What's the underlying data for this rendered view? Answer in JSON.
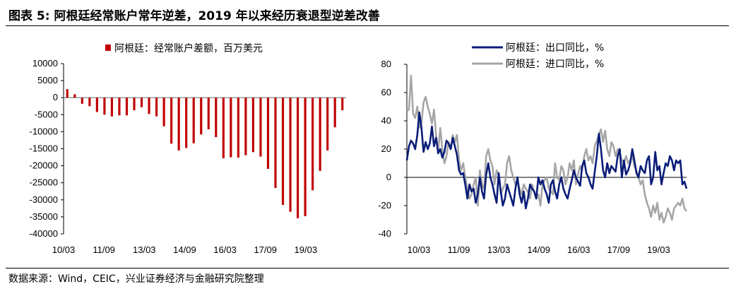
{
  "figure": {
    "title": "图表 5:  阿根廷经常账户常年逆差，2019 年以来经历衰退型逆差改善",
    "source": "数据来源：Wind，CEIC，兴业证券经济与金融研究院整理"
  },
  "chart_data": [
    {
      "type": "bar",
      "series": [
        {
          "name": "阿根廷：经常账户差额，百万美元",
          "color": "#c00000",
          "values": [
            2500,
            1000,
            -1800,
            -2500,
            -4200,
            -5000,
            -5500,
            -5200,
            -5200,
            -3700,
            -2800,
            -4800,
            -5500,
            -8400,
            -13500,
            -15500,
            -14800,
            -13400,
            -10800,
            -9300,
            -11600,
            -17800,
            -17500,
            -17600,
            -16900,
            -16000,
            -17300,
            -20900,
            -26500,
            -31500,
            -33500,
            -35400,
            -34800,
            -27200,
            -21500,
            -15500,
            -8700,
            -3700
          ]
        }
      ],
      "ylim": [
        -40000,
        10000
      ],
      "yticks": [
        "10000",
        "5000",
        "0",
        "-5000",
        "-10000",
        "-15000",
        "-20000",
        "-25000",
        "-30000",
        "-35000",
        "-40000"
      ],
      "xtick_labels": [
        "10/03",
        "11/09",
        "13/03",
        "14/09",
        "16/03",
        "17/09",
        "19/03"
      ],
      "legend_position": "top"
    },
    {
      "type": "line",
      "series": [
        {
          "name": "阿根廷：出口同比，%",
          "color": "#0a1c78",
          "values": [
            12,
            22,
            26,
            24,
            20,
            30,
            46,
            35,
            18,
            25,
            20,
            24,
            36,
            22,
            28,
            17,
            20,
            14,
            18,
            26,
            24,
            20,
            28,
            22,
            16,
            5,
            2,
            3,
            -5,
            -15,
            -5,
            -10,
            -8,
            -18,
            -12,
            0,
            -10,
            -15,
            2,
            10,
            0,
            -5,
            -12,
            -18,
            3,
            -10,
            -20,
            -15,
            -5,
            -10,
            -15,
            -20,
            -8,
            0,
            -12,
            -18,
            -10,
            -22,
            -15,
            -5,
            -8,
            -10,
            -15,
            0,
            -5,
            -2,
            -8,
            -12,
            -18,
            -5,
            -2,
            -10,
            -15,
            -5,
            0,
            -8,
            -12,
            -15,
            -8,
            -2,
            5,
            0,
            -3,
            -6,
            8,
            12,
            3,
            0,
            -5,
            -8,
            4,
            15,
            31,
            20,
            5,
            0,
            10,
            3,
            8,
            6,
            4,
            15,
            20,
            0,
            12,
            2,
            5,
            10,
            20,
            12,
            3,
            0,
            8,
            5,
            3,
            12,
            15,
            -5,
            0,
            18,
            5,
            8,
            -5,
            3,
            10,
            8,
            15,
            12,
            5,
            12,
            10,
            12,
            -5,
            -3,
            -8
          ]
        },
        {
          "name": "阿根廷：进口同比，%",
          "color": "#a6a6a6",
          "values": [
            47,
            48,
            72,
            45,
            42,
            50,
            35,
            38,
            53,
            57,
            50,
            45,
            38,
            48,
            30,
            18,
            35,
            20,
            10,
            15,
            25,
            20,
            30,
            25,
            30,
            12,
            5,
            10,
            0,
            -8,
            -15,
            -12,
            -5,
            0,
            -20,
            5,
            -5,
            -8,
            15,
            20,
            12,
            8,
            -5,
            5,
            2,
            -12,
            -8,
            -5,
            10,
            15,
            5,
            0,
            -5,
            -3,
            -8,
            -12,
            -5,
            -8,
            -10,
            -15,
            -5,
            -10,
            -15,
            -12,
            -20,
            -5,
            -2,
            0,
            -8,
            -10,
            -12,
            10,
            0,
            -2,
            8,
            5,
            -5,
            0,
            10,
            5,
            12,
            -5,
            2,
            8,
            5,
            15,
            20,
            12,
            15,
            10,
            22,
            26,
            30,
            34,
            25,
            33,
            20,
            15,
            25,
            22,
            15,
            20,
            18,
            12,
            10,
            15,
            10,
            12,
            15,
            8,
            5,
            0,
            -5,
            -2,
            -12,
            -18,
            -22,
            -28,
            -20,
            -25,
            -18,
            -30,
            -25,
            -32,
            -28,
            -22,
            -25,
            -30,
            -22,
            -20,
            -18,
            -20,
            -15,
            -22,
            -24
          ]
        }
      ],
      "ylim": [
        -40,
        80
      ],
      "yticks": [
        "80",
        "60",
        "40",
        "20",
        "0",
        "-20",
        "-40"
      ],
      "xtick_labels": [
        "10/03",
        "11/09",
        "13/03",
        "14/09",
        "16/03",
        "17/09",
        "19/03"
      ],
      "legend_position": "top"
    }
  ]
}
